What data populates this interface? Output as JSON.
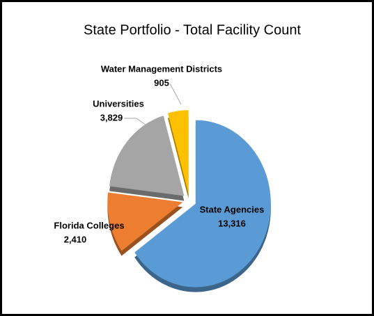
{
  "chart_data": {
    "type": "pie",
    "title": "State Portfolio - Total Facility Count",
    "categories": [
      "State Agencies",
      "Florida Colleges",
      "Universities",
      "Water Management Districts"
    ],
    "values": [
      13316,
      2410,
      3829,
      905
    ],
    "value_labels": [
      "13,316",
      "2,410",
      "3,829",
      "905"
    ],
    "colors": [
      "#5b9bd5",
      "#ed7d31",
      "#a5a5a5",
      "#ffc000"
    ]
  }
}
